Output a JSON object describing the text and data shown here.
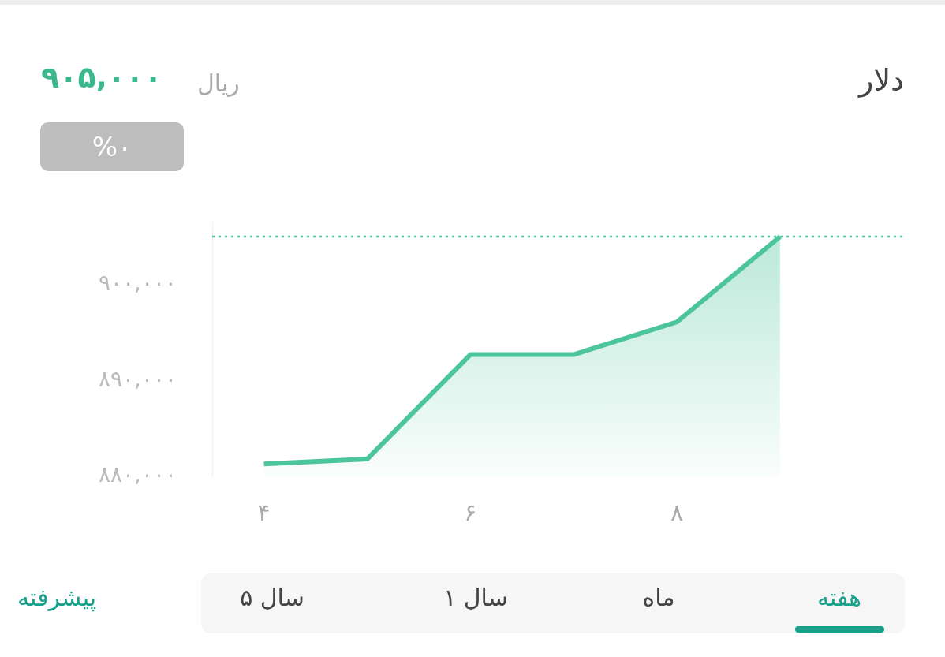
{
  "chart_data": {
    "type": "area",
    "title": "دلار",
    "annotations": [
      "ریال",
      "۹۰۵,۰۰۰",
      "%۰",
      "هفته",
      "ماه",
      "۱ سال",
      "۵ سال",
      "پیشرفته"
    ],
    "x": [
      4,
      5,
      6,
      7,
      8,
      9
    ],
    "series": [
      {
        "color": "#4cc59a",
        "values": [
          881300,
          881800,
          892700,
          892700,
          896100,
          905000
        ]
      }
    ],
    "xlim": [
      3.5,
      10.2
    ],
    "xticks": [
      {
        "value": 4,
        "label": "۴"
      },
      {
        "value": 6,
        "label": "۶"
      },
      {
        "value": 8,
        "label": "۸"
      }
    ],
    "ylim": [
      880000,
      906500
    ],
    "yticks": [
      {
        "value": 880000,
        "label": "۸۸۰,۰۰۰"
      },
      {
        "value": 890000,
        "label": "۸۹۰,۰۰۰"
      },
      {
        "value": 900000,
        "label": "۹۰۰,۰۰۰"
      }
    ],
    "ref_lines": [
      {
        "axis": "y",
        "value": 905000,
        "color": "#4cc59a",
        "line_style": "dotted"
      }
    ],
    "grid": false,
    "legend": false,
    "marker": "none",
    "line_style": "solid"
  }
}
